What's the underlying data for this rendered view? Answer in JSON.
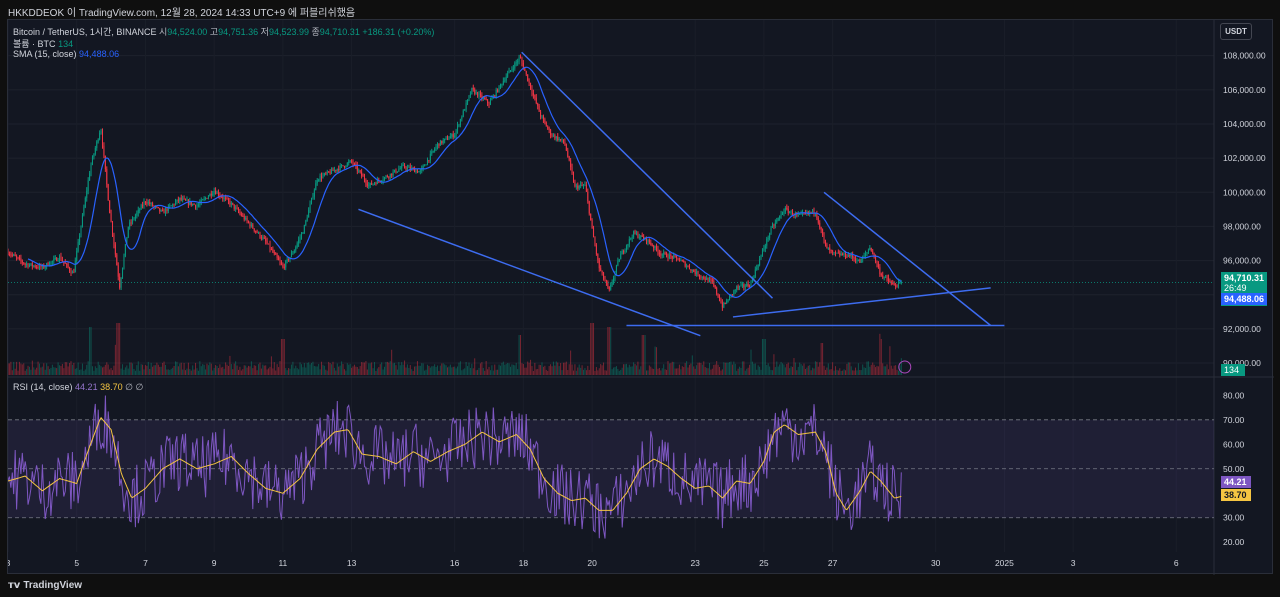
{
  "header": {
    "publish_line": "HKKDDEOK 이 TradingView.com, 12월 28, 2024 14:33 UTC+9 에 퍼블리쉬했음"
  },
  "legend": {
    "symbol": "Bitcoin / TetherUS, 1시간, BINANCE",
    "open_label": "시",
    "open": "94,524.00",
    "high_label": "고",
    "high": "94,751.36",
    "low_label": "저",
    "low": "94,523.99",
    "close_label": "종",
    "close": "94,710.31",
    "change": "+186.31 (+0.20%)",
    "volume_label": "볼륨 · BTC",
    "volume": "134",
    "sma_label": "SMA (15, close)",
    "sma": "94,488.06",
    "rsi_label": "RSI (14, close)",
    "rsi": "44.21",
    "rsi_ma": "38.70",
    "rsi_extra1": "∅",
    "rsi_extra2": "∅"
  },
  "currency_button": "USDT",
  "price_tags": {
    "close": "94,710.31",
    "countdown": "26:49",
    "sma": "94,488.06",
    "volume": "134",
    "rsi": "44.21",
    "rsi_ma": "38.70"
  },
  "footer": {
    "brand": "TradingView"
  },
  "colors": {
    "up": "#089981",
    "down": "#f23645",
    "sma": "#2962ff",
    "trendline": "#3d6cf0",
    "rsi": "#7e57c2",
    "rsi_ma": "#f5c542"
  },
  "chart_data": [
    {
      "type": "candlestick",
      "title": "Bitcoin / TetherUS, 1시간, BINANCE",
      "y_ticks": [
        90000,
        92000,
        94000,
        96000,
        98000,
        100000,
        102000,
        104000,
        106000,
        108000
      ],
      "y_tick_labels": [
        "90,000.00",
        "92,000.00",
        "94,000.00",
        "96,000.00",
        "98,000.00",
        "100,000.00",
        "102,000.00",
        "104,000.00",
        "106,000.00",
        "108,000.00"
      ],
      "ylim": [
        89300,
        108800
      ],
      "x_ticks": [
        {
          "day": 3,
          "label": "3"
        },
        {
          "day": 5,
          "label": "5"
        },
        {
          "day": 7,
          "label": "7"
        },
        {
          "day": 9,
          "label": "9"
        },
        {
          "day": 11,
          "label": "11"
        },
        {
          "day": 13,
          "label": "13"
        },
        {
          "day": 16,
          "label": "16"
        },
        {
          "day": 18,
          "label": "18"
        },
        {
          "day": 20,
          "label": "20"
        },
        {
          "day": 23,
          "label": "23"
        },
        {
          "day": 25,
          "label": "25"
        },
        {
          "day": 27,
          "label": "27"
        },
        {
          "day": 30,
          "label": "30"
        },
        {
          "day": 32,
          "label": "2025"
        },
        {
          "day": 34,
          "label": "3"
        },
        {
          "day": 37,
          "label": "6"
        }
      ],
      "xlim_days": [
        3,
        38.1
      ],
      "price_path": [
        [
          3.0,
          96500
        ],
        [
          3.5,
          95800
        ],
        [
          4.0,
          95600
        ],
        [
          4.5,
          96200
        ],
        [
          4.9,
          95200
        ],
        [
          5.4,
          101500
        ],
        [
          5.7,
          103800
        ],
        [
          5.95,
          99000
        ],
        [
          6.25,
          94500
        ],
        [
          6.5,
          98000
        ],
        [
          7.0,
          99500
        ],
        [
          7.5,
          98800
        ],
        [
          8.0,
          99600
        ],
        [
          8.5,
          99200
        ],
        [
          9.0,
          100100
        ],
        [
          9.5,
          99300
        ],
        [
          10.0,
          98200
        ],
        [
          10.5,
          97100
        ],
        [
          11.0,
          95600
        ],
        [
          11.3,
          96500
        ],
        [
          11.6,
          97800
        ],
        [
          12.0,
          100800
        ],
        [
          12.5,
          101300
        ],
        [
          13.0,
          101800
        ],
        [
          13.5,
          100400
        ],
        [
          14.0,
          100900
        ],
        [
          14.5,
          101500
        ],
        [
          15.0,
          101200
        ],
        [
          15.5,
          102800
        ],
        [
          16.0,
          103400
        ],
        [
          16.5,
          106000
        ],
        [
          17.0,
          105200
        ],
        [
          17.5,
          106800
        ],
        [
          17.9,
          107900
        ],
        [
          18.2,
          106200
        ],
        [
          18.5,
          104500
        ],
        [
          18.8,
          103400
        ],
        [
          19.2,
          102900
        ],
        [
          19.5,
          100300
        ],
        [
          19.8,
          100400
        ],
        [
          20.0,
          97800
        ],
        [
          20.2,
          95600
        ],
        [
          20.5,
          94200
        ],
        [
          20.8,
          96200
        ],
        [
          21.2,
          97600
        ],
        [
          21.6,
          97200
        ],
        [
          22.0,
          96400
        ],
        [
          22.5,
          96100
        ],
        [
          23.0,
          95300
        ],
        [
          23.5,
          94700
        ],
        [
          23.8,
          93300
        ],
        [
          24.2,
          94400
        ],
        [
          24.6,
          94600
        ],
        [
          24.9,
          96200
        ],
        [
          25.2,
          97800
        ],
        [
          25.6,
          99000
        ],
        [
          26.0,
          98600
        ],
        [
          26.5,
          98900
        ],
        [
          26.8,
          96800
        ],
        [
          27.0,
          96400
        ],
        [
          27.5,
          96300
        ],
        [
          27.8,
          95900
        ],
        [
          28.1,
          96800
        ],
        [
          28.4,
          95200
        ],
        [
          28.8,
          94500
        ],
        [
          29.0,
          94710
        ]
      ],
      "sma_label": "SMA (15, close)",
      "sma_last": 94488.06,
      "last_close": 94710.31,
      "trendlines": [
        {
          "from": {
            "day": 17.95,
            "price": 108200
          },
          "to": {
            "day": 25.25,
            "price": 93800
          }
        },
        {
          "from": {
            "day": 13.2,
            "price": 99000
          },
          "to": {
            "day": 23.15,
            "price": 91600
          }
        },
        {
          "from": {
            "day": 21.0,
            "price": 92200
          },
          "to": {
            "day": 32.0,
            "price": 92200
          }
        },
        {
          "from": {
            "day": 24.1,
            "price": 92700
          },
          "to": {
            "day": 31.6,
            "price": 94400
          }
        },
        {
          "from": {
            "day": 26.75,
            "price": 100000
          },
          "to": {
            "day": 31.6,
            "price": 92200
          }
        }
      ]
    },
    {
      "type": "bar",
      "title": "볼륨 · BTC",
      "last_value": 134,
      "spikes": [
        {
          "day": 5.4,
          "rel": 0.9
        },
        {
          "day": 6.2,
          "rel": 1.0
        },
        {
          "day": 11.0,
          "rel": 0.6
        },
        {
          "day": 17.9,
          "rel": 0.7
        },
        {
          "day": 20.0,
          "rel": 1.0
        },
        {
          "day": 20.5,
          "rel": 0.9
        },
        {
          "day": 21.5,
          "rel": 0.7
        },
        {
          "day": 25.0,
          "rel": 0.6
        },
        {
          "day": 26.7,
          "rel": 0.5
        },
        {
          "day": 28.4,
          "rel": 0.6
        }
      ]
    },
    {
      "type": "line",
      "title": "RSI (14, close)",
      "y_ticks": [
        20,
        30,
        40,
        50,
        60,
        70,
        80
      ],
      "y_tick_labels": [
        "20.00",
        "30.00",
        "40.00",
        "50.00",
        "60.00",
        "70.00",
        "80.00"
      ],
      "ylim": [
        16,
        83
      ],
      "band": [
        30,
        70
      ],
      "midline": 50,
      "rsi_last": 44.21,
      "rsi_ma_last": 38.7,
      "rsi_ma_path": [
        [
          3.0,
          45
        ],
        [
          3.5,
          47
        ],
        [
          4.0,
          41
        ],
        [
          4.5,
          46
        ],
        [
          5.0,
          44
        ],
        [
          5.4,
          60
        ],
        [
          5.7,
          71
        ],
        [
          6.0,
          66
        ],
        [
          6.3,
          48
        ],
        [
          6.6,
          38
        ],
        [
          7.0,
          42
        ],
        [
          7.5,
          50
        ],
        [
          8.0,
          54
        ],
        [
          8.5,
          50
        ],
        [
          9.0,
          52
        ],
        [
          9.5,
          55
        ],
        [
          10.0,
          48
        ],
        [
          10.5,
          42
        ],
        [
          11.0,
          40
        ],
        [
          11.5,
          46
        ],
        [
          12.0,
          58
        ],
        [
          12.5,
          65
        ],
        [
          12.9,
          66
        ],
        [
          13.3,
          56
        ],
        [
          13.8,
          55
        ],
        [
          14.3,
          52
        ],
        [
          14.8,
          57
        ],
        [
          15.3,
          53
        ],
        [
          15.8,
          57
        ],
        [
          16.3,
          60
        ],
        [
          16.8,
          65
        ],
        [
          17.3,
          61
        ],
        [
          17.8,
          64
        ],
        [
          18.2,
          58
        ],
        [
          18.6,
          46
        ],
        [
          19.0,
          40
        ],
        [
          19.4,
          37
        ],
        [
          19.8,
          38
        ],
        [
          20.2,
          33
        ],
        [
          20.6,
          33
        ],
        [
          21.0,
          40
        ],
        [
          21.4,
          50
        ],
        [
          21.8,
          54
        ],
        [
          22.2,
          51
        ],
        [
          22.6,
          46
        ],
        [
          23.0,
          42
        ],
        [
          23.4,
          43
        ],
        [
          23.8,
          38
        ],
        [
          24.2,
          45
        ],
        [
          24.6,
          44
        ],
        [
          25.0,
          53
        ],
        [
          25.3,
          65
        ],
        [
          25.6,
          68
        ],
        [
          26.0,
          64
        ],
        [
          26.5,
          65
        ],
        [
          26.8,
          57
        ],
        [
          27.1,
          40
        ],
        [
          27.4,
          33
        ],
        [
          27.8,
          41
        ],
        [
          28.1,
          49
        ],
        [
          28.4,
          45
        ],
        [
          28.8,
          38
        ],
        [
          29.0,
          38.7
        ]
      ]
    }
  ]
}
